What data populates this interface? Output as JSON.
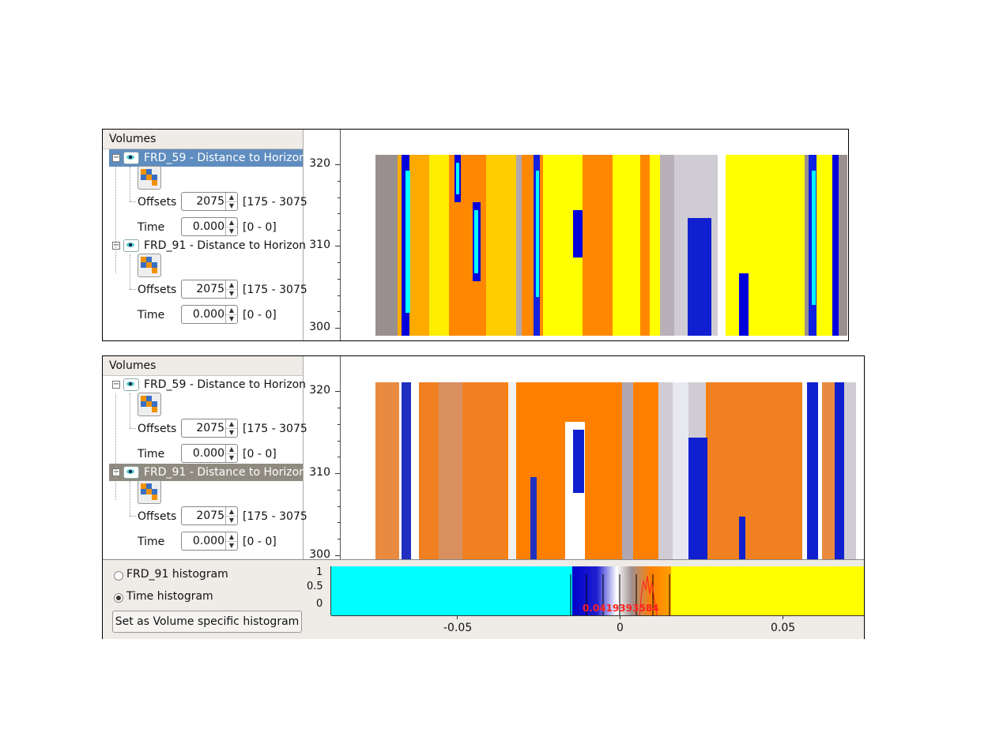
{
  "panels": [
    {
      "tree_header": "Volumes",
      "volumes": [
        {
          "label": "FRD_59 - Distance to Horizon",
          "selected": true,
          "offsets_label": "Offsets",
          "offsets_value": "2075",
          "offsets_range": "[175 - 3075",
          "time_label": "Time",
          "time_value": "0.000",
          "time_range": "[0 - 0]"
        },
        {
          "label": "FRD_91 - Distance to Horizon",
          "selected": false,
          "offsets_label": "Offsets",
          "offsets_value": "2075",
          "offsets_range": "[175 - 3075",
          "time_label": "Time",
          "time_value": "0.000",
          "time_range": "[0 - 0]"
        }
      ],
      "y_ticks": [
        "320",
        "310",
        "300"
      ],
      "colors": {
        "orange": "#ff8800",
        "yellow": "#ffff00",
        "blue": "#0000dd",
        "cyan": "#00ffff",
        "gray": "#9a8f8f"
      }
    },
    {
      "tree_header": "Volumes",
      "volumes": [
        {
          "label": "FRD_59 - Distance to Horizon",
          "selected": false,
          "offsets_label": "Offsets",
          "offsets_value": "2075",
          "offsets_range": "[175 - 3075",
          "time_label": "Time",
          "time_value": "0.000",
          "time_range": "[0 - 0]"
        },
        {
          "label": "FRD_91 - Distance to Horizon",
          "selected": true,
          "offsets_label": "Offsets",
          "offsets_value": "2075",
          "offsets_range": "[175 - 3075",
          "time_label": "Time",
          "time_value": "0.000",
          "time_range": "[0 - 0]"
        }
      ],
      "y_ticks": [
        "320",
        "310",
        "300"
      ],
      "colors": {
        "orange": "#ff8000",
        "blue": "#1010d0",
        "white": "#ffffff",
        "gray": "#a08a80"
      }
    }
  ],
  "histogram_panel": {
    "radio_volume": "FRD_91 histogram",
    "radio_time": "Time histogram",
    "selected_radio": "time",
    "button_label": "Set as Volume specific histogram",
    "y_ticks": [
      "1",
      "0.5",
      "0"
    ],
    "x_ticks": [
      "-0.05",
      "0",
      "0.05"
    ],
    "overlay_text": "0.0419393584",
    "colors": {
      "low": "#00ffff",
      "high": "#ffff00",
      "hist_line": "#ff2020"
    }
  }
}
